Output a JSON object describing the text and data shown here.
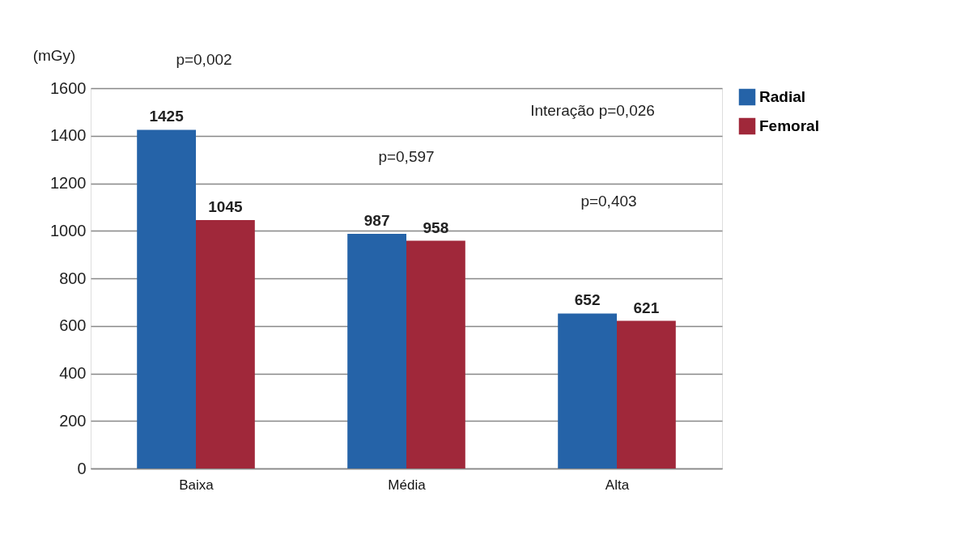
{
  "chart_data": {
    "type": "bar",
    "ylabel": "(mGy)",
    "categories": [
      "Baixa",
      "Média",
      "Alta"
    ],
    "series": [
      {
        "name": "Radial",
        "color": "#2563a8",
        "values": [
          1425,
          987,
          652
        ]
      },
      {
        "name": "Femoral",
        "color": "#a0283a",
        "values": [
          1045,
          958,
          621
        ]
      }
    ],
    "ylim": [
      0,
      1600
    ],
    "yticks": [
      0,
      200,
      400,
      600,
      800,
      1000,
      1200,
      1400,
      1600
    ],
    "grid": "y",
    "legend": "right",
    "data_labels": true,
    "annotations": [
      "p=0,002",
      "p=0,597",
      "p=0,403",
      "Interação p=0,026"
    ]
  }
}
